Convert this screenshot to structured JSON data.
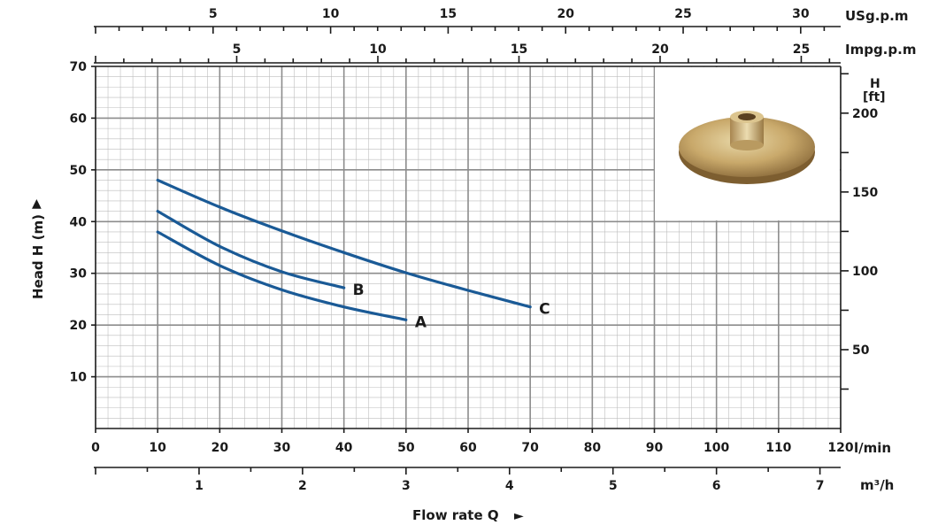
{
  "chart_data": {
    "type": "line",
    "title": "",
    "xlabel": "Flow rate Q",
    "ylabel": "Head H (m)",
    "x_unit": "l/min",
    "xlim": [
      0,
      120
    ],
    "ylim": [
      0,
      70
    ],
    "x_ticks": [
      "0",
      "10",
      "20",
      "30",
      "40",
      "50",
      "60",
      "70",
      "80",
      "90",
      "100",
      "110",
      "120"
    ],
    "y_ticks": [
      "10",
      "20",
      "30",
      "40",
      "50",
      "60",
      "70"
    ],
    "grid": true,
    "series": [
      {
        "name": "A",
        "x": [
          10,
          20,
          30,
          40,
          50
        ],
        "y": [
          38,
          31.5,
          26.8,
          23.5,
          21
        ]
      },
      {
        "name": "B",
        "x": [
          10,
          20,
          30,
          40
        ],
        "y": [
          42,
          35.2,
          30.3,
          27.2
        ]
      },
      {
        "name": "C",
        "x": [
          10,
          20,
          30,
          40,
          50,
          60,
          70
        ],
        "y": [
          48,
          42.8,
          38.2,
          34,
          30.1,
          26.7,
          23.5
        ]
      }
    ],
    "secondary_axes": {
      "usgpm": {
        "label": "USg.p.m",
        "ticks": [
          "5",
          "10",
          "15",
          "20",
          "25",
          "30"
        ],
        "values": [
          5,
          10,
          15,
          20,
          25,
          30
        ]
      },
      "impgpm": {
        "label": "Impg.p.m",
        "ticks": [
          "5",
          "10",
          "15",
          "20",
          "25"
        ],
        "values": [
          5,
          10,
          15,
          20,
          25
        ]
      },
      "m3h": {
        "label": "m³/h",
        "ticks": [
          "1",
          "2",
          "3",
          "4",
          "5",
          "6",
          "7"
        ],
        "values": [
          1,
          2,
          3,
          4,
          5,
          6,
          7
        ]
      },
      "ft": {
        "label_line1": "H",
        "label_line2": "[ft]",
        "ticks": [
          "50",
          "100",
          "150",
          "200"
        ],
        "values": [
          50,
          100,
          150,
          200
        ]
      }
    },
    "arrow_up": "▲",
    "arrow_right": "►"
  },
  "image": {
    "name": "impeller-photo"
  }
}
